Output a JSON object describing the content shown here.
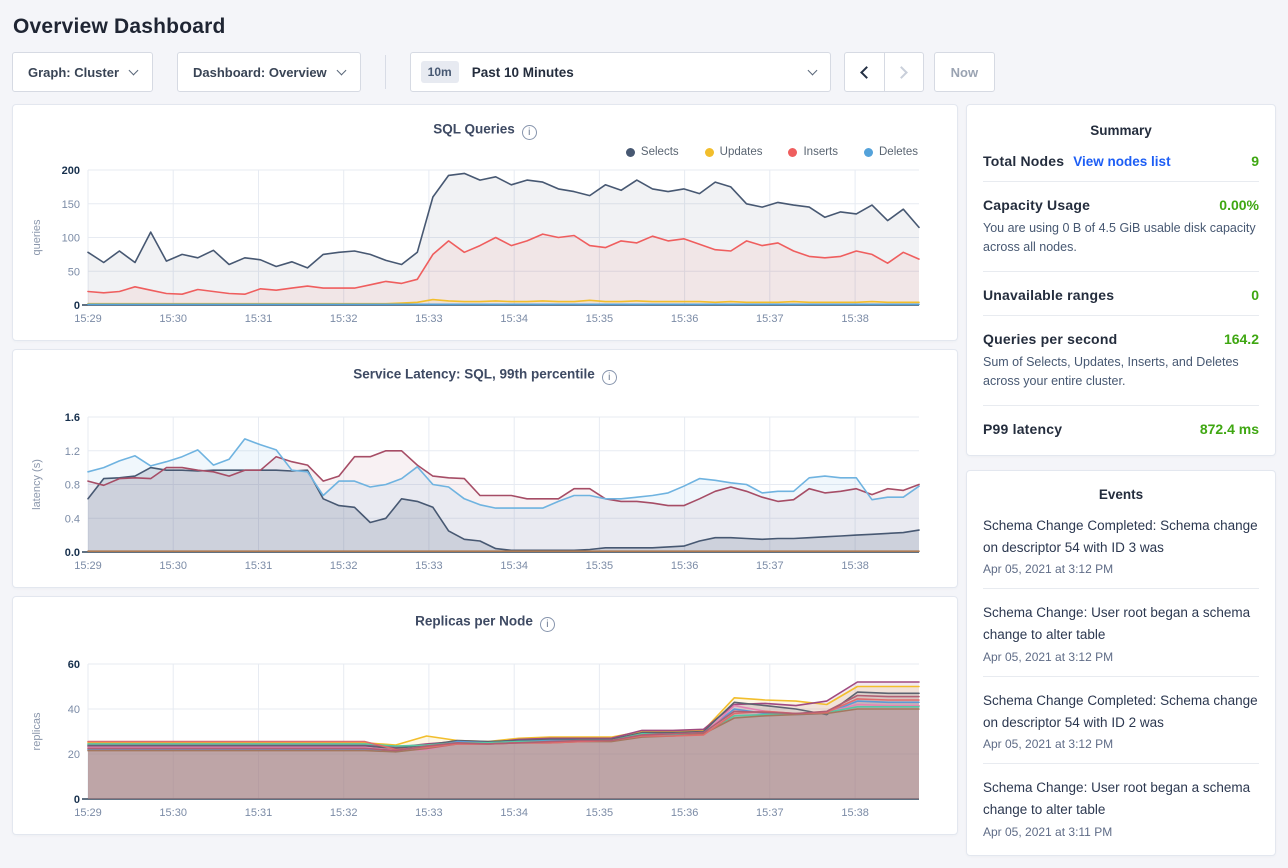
{
  "page": {
    "title": "Overview Dashboard"
  },
  "toolbar": {
    "graph_dropdown": "Graph: Cluster",
    "dashboard_dropdown": "Dashboard: Overview",
    "time_badge": "10m",
    "time_range": "Past 10 Minutes",
    "now_button": "Now"
  },
  "summary": {
    "title": "Summary",
    "total_nodes": {
      "label": "Total Nodes",
      "link": "View nodes list",
      "value": "9"
    },
    "capacity": {
      "label": "Capacity Usage",
      "value": "0.00%",
      "desc": "You are using 0 B of 4.5 GiB usable disk capacity across all nodes."
    },
    "unavailable": {
      "label": "Unavailable ranges",
      "value": "0"
    },
    "qps": {
      "label": "Queries per second",
      "value": "164.2",
      "desc": "Sum of Selects, Updates, Inserts, and Deletes across your entire cluster."
    },
    "p99": {
      "label": "P99 latency",
      "value": "872.4 ms"
    }
  },
  "events": {
    "title": "Events",
    "items": [
      {
        "text": "Schema Change Completed: Schema change on descriptor 54 with ID 3 was",
        "timestamp": "Apr 05, 2021 at 3:12 PM"
      },
      {
        "text": "Schema Change: User root began a schema change to alter table",
        "timestamp": "Apr 05, 2021 at 3:12 PM"
      },
      {
        "text": "Schema Change Completed: Schema change on descriptor 54 with ID 2 was",
        "timestamp": "Apr 05, 2021 at 3:12 PM"
      },
      {
        "text": "Schema Change: User root began a schema change to alter table",
        "timestamp": "Apr 05, 2021 at 3:11 PM"
      }
    ]
  },
  "chart_data": [
    {
      "type": "area",
      "title": "SQL Queries",
      "ylabel": "queries",
      "ylim": [
        0,
        200
      ],
      "yticks": [
        [
          0,
          "0"
        ],
        [
          50,
          "50"
        ],
        [
          100,
          "100"
        ],
        [
          150,
          "150"
        ],
        [
          200,
          "200"
        ]
      ],
      "x_tick_labels": [
        "15:29",
        "15:30",
        "15:31",
        "15:32",
        "15:33",
        "15:34",
        "15:35",
        "15:36",
        "15:37",
        "15:38"
      ],
      "x_total_seconds": 585,
      "grid": true,
      "legend_position": "top-right",
      "series": [
        {
          "name": "Selects",
          "color": "#475872",
          "fill_opacity": 0.08,
          "values": [
            78,
            63,
            80,
            63,
            108,
            65,
            75,
            70,
            81,
            60,
            70,
            67,
            57,
            64,
            55,
            75,
            78,
            80,
            75,
            66,
            60,
            78,
            160,
            192,
            195,
            185,
            190,
            178,
            185,
            182,
            172,
            168,
            162,
            178,
            170,
            185,
            172,
            168,
            172,
            165,
            182,
            175,
            150,
            145,
            152,
            148,
            145,
            130,
            138,
            135,
            148,
            125,
            142,
            115
          ]
        },
        {
          "name": "Updates",
          "color": "#f2be2c",
          "fill_opacity": 0.1,
          "values": [
            2,
            2,
            2,
            2,
            2,
            2,
            2,
            2,
            2,
            2,
            2,
            2,
            2,
            2,
            2,
            2,
            2,
            2,
            2,
            2,
            3,
            4,
            8,
            6,
            5,
            5,
            6,
            5,
            5,
            6,
            5,
            5,
            7,
            5,
            5,
            6,
            5,
            5,
            5,
            5,
            4,
            5,
            4,
            4,
            4,
            5,
            4,
            4,
            4,
            4,
            5,
            4,
            4,
            4
          ]
        },
        {
          "name": "Inserts",
          "color": "#ef5e5e",
          "fill_opacity": 0.08,
          "values": [
            20,
            18,
            20,
            27,
            22,
            17,
            16,
            23,
            20,
            17,
            16,
            24,
            22,
            25,
            28,
            25,
            25,
            25,
            30,
            35,
            32,
            38,
            75,
            95,
            78,
            88,
            100,
            88,
            95,
            105,
            100,
            103,
            88,
            85,
            95,
            92,
            102,
            95,
            98,
            90,
            82,
            80,
            95,
            88,
            92,
            80,
            72,
            70,
            72,
            80,
            75,
            62,
            78,
            68
          ]
        },
        {
          "name": "Deletes",
          "color": "#54a2da",
          "fill_opacity": 0.1,
          "values": [
            1,
            1,
            1,
            1,
            1,
            1,
            1,
            1,
            1,
            1,
            1,
            1,
            1,
            1,
            1,
            1,
            1,
            1,
            1,
            1,
            1,
            1,
            1,
            1,
            1,
            1,
            1,
            1,
            1,
            1,
            1,
            1,
            1,
            1,
            1,
            1,
            1,
            1,
            1,
            1,
            1,
            1,
            1,
            1,
            1,
            1,
            1,
            1,
            1,
            1,
            1,
            1,
            1,
            1
          ]
        }
      ]
    },
    {
      "type": "area",
      "title": "Service Latency: SQL, 99th percentile",
      "ylabel": "latency (s)",
      "ylim": [
        0,
        1.6
      ],
      "yticks": [
        [
          0,
          "0.0"
        ],
        [
          0.4,
          "0.4"
        ],
        [
          0.8,
          "0.8"
        ],
        [
          1.2,
          "1.2"
        ],
        [
          1.6,
          "1.6"
        ]
      ],
      "x_tick_labels": [
        "15:29",
        "15:30",
        "15:31",
        "15:32",
        "15:33",
        "15:34",
        "15:35",
        "15:36",
        "15:37",
        "15:38"
      ],
      "x_total_seconds": 585,
      "grid": true,
      "series": [
        {
          "color": "#475872",
          "fill_opacity": 0.18,
          "values": [
            0.63,
            0.87,
            0.88,
            0.9,
            1.0,
            0.97,
            0.97,
            0.96,
            0.97,
            0.97,
            0.97,
            0.97,
            0.97,
            0.96,
            0.97,
            0.63,
            0.55,
            0.53,
            0.35,
            0.4,
            0.63,
            0.6,
            0.53,
            0.25,
            0.15,
            0.13,
            0.04,
            0.02,
            0.02,
            0.02,
            0.02,
            0.02,
            0.03,
            0.05,
            0.05,
            0.05,
            0.05,
            0.06,
            0.07,
            0.13,
            0.17,
            0.17,
            0.16,
            0.15,
            0.16,
            0.16,
            0.17,
            0.18,
            0.19,
            0.2,
            0.21,
            0.22,
            0.23,
            0.26
          ]
        },
        {
          "color": "#a64d66",
          "fill_opacity": 0.08,
          "values": [
            0.84,
            0.79,
            0.87,
            0.88,
            0.87,
            1.0,
            1.0,
            0.97,
            0.95,
            0.9,
            0.97,
            0.97,
            1.13,
            1.07,
            1.03,
            0.84,
            0.9,
            1.13,
            1.13,
            1.2,
            1.2,
            1.03,
            0.9,
            0.88,
            0.87,
            0.67,
            0.67,
            0.67,
            0.63,
            0.63,
            0.63,
            0.75,
            0.75,
            0.63,
            0.6,
            0.6,
            0.58,
            0.55,
            0.55,
            0.63,
            0.72,
            0.77,
            0.72,
            0.65,
            0.6,
            0.62,
            0.75,
            0.7,
            0.72,
            0.75,
            0.68,
            0.75,
            0.73,
            0.8
          ]
        },
        {
          "color": "#6fb3e0",
          "fill_opacity": 0.1,
          "values": [
            0.95,
            1.0,
            1.08,
            1.14,
            1.02,
            1.07,
            1.13,
            1.21,
            1.03,
            1.1,
            1.34,
            1.27,
            1.21,
            0.97,
            0.95,
            0.67,
            0.84,
            0.84,
            0.77,
            0.8,
            0.87,
            1.01,
            0.8,
            0.77,
            0.63,
            0.56,
            0.52,
            0.52,
            0.52,
            0.52,
            0.6,
            0.67,
            0.67,
            0.63,
            0.63,
            0.65,
            0.67,
            0.7,
            0.78,
            0.87,
            0.85,
            0.82,
            0.8,
            0.7,
            0.72,
            0.72,
            0.88,
            0.9,
            0.88,
            0.88,
            0.62,
            0.65,
            0.65,
            0.78
          ]
        },
        {
          "color": "#ad7a52",
          "fill_opacity": 0,
          "values": [
            0.01,
            0.01,
            0.01,
            0.01,
            0.01,
            0.01,
            0.01,
            0.01,
            0.01,
            0.01,
            0.01,
            0.01,
            0.01,
            0.01,
            0.01,
            0.01,
            0.01,
            0.01,
            0.01,
            0.01,
            0.01,
            0.01,
            0.01,
            0.01,
            0.01,
            0.01,
            0.01,
            0.01,
            0.01,
            0.01,
            0.01,
            0.01,
            0.01,
            0.01,
            0.01,
            0.01,
            0.01,
            0.01,
            0.01,
            0.01,
            0.01,
            0.01,
            0.01,
            0.01,
            0.01,
            0.01,
            0.01,
            0.01,
            0.01,
            0.01,
            0.01,
            0.01,
            0.01,
            0.01
          ]
        }
      ]
    },
    {
      "type": "area",
      "title": "Replicas per Node",
      "ylabel": "replicas",
      "ylim": [
        0,
        60
      ],
      "yticks": [
        [
          0,
          "0"
        ],
        [
          20,
          "20"
        ],
        [
          40,
          "40"
        ],
        [
          60,
          "60"
        ]
      ],
      "x_tick_labels": [
        "15:29",
        "15:30",
        "15:31",
        "15:32",
        "15:33",
        "15:34",
        "15:35",
        "15:36",
        "15:37",
        "15:38"
      ],
      "x_total_seconds": 585,
      "grid": true,
      "series": [
        {
          "color": "#f2be2c",
          "fill_opacity": 0.12,
          "values": [
            25,
            25,
            25,
            25,
            25,
            25,
            25,
            25,
            25,
            25,
            24,
            28,
            26,
            25.5,
            27,
            27.5,
            27.5,
            27.5,
            30,
            30,
            30.5,
            45,
            44,
            43.5,
            42,
            50,
            50,
            50
          ]
        },
        {
          "color": "#a04a80",
          "fill_opacity": 0.12,
          "values": [
            24,
            24,
            24,
            24,
            24,
            24,
            24,
            24,
            24,
            24,
            23,
            24.5,
            25.5,
            25,
            26.5,
            27,
            27,
            27,
            30.5,
            30.5,
            31,
            42,
            42.5,
            41.5,
            43.5,
            52,
            52,
            52
          ]
        },
        {
          "color": "#5d6370",
          "fill_opacity": 0.12,
          "values": [
            23.5,
            23.5,
            23.5,
            23.5,
            23.5,
            23.5,
            23.5,
            23.5,
            23.5,
            23.5,
            22.5,
            24,
            26,
            25.5,
            26,
            26.5,
            26.5,
            26.5,
            29.5,
            29.5,
            30,
            43,
            41.5,
            40,
            37.5,
            47.5,
            47,
            47
          ]
        },
        {
          "color": "#5b9bd5",
          "fill_opacity": 0.12,
          "values": [
            22,
            22,
            22,
            22,
            22,
            22,
            22,
            22,
            22,
            22,
            21,
            23,
            25.5,
            25,
            25.5,
            26,
            26,
            26,
            28.5,
            29,
            29.5,
            40,
            38,
            37.5,
            38,
            43.5,
            43,
            43
          ]
        },
        {
          "color": "#e583b4",
          "fill_opacity": 0.12,
          "values": [
            23,
            23,
            23,
            23,
            23,
            23,
            23,
            23,
            23,
            23,
            21.5,
            22,
            24.5,
            24.5,
            25,
            25.5,
            25.5,
            26,
            28,
            28.5,
            29,
            41.5,
            39,
            38,
            38.5,
            42,
            41.5,
            41.5
          ]
        },
        {
          "color": "#57c7a2",
          "fill_opacity": 0.12,
          "values": [
            24.5,
            24.5,
            24.5,
            24.5,
            24.5,
            24.5,
            24.5,
            24.5,
            24.5,
            24.5,
            23.5,
            24,
            25,
            25,
            25.5,
            25.5,
            26,
            26,
            29,
            28.5,
            29,
            37,
            37.5,
            38,
            38.5,
            41,
            41,
            41
          ]
        },
        {
          "color": "#a3785f",
          "fill_opacity": 0.12,
          "values": [
            21.5,
            21.5,
            21.5,
            21.5,
            21.5,
            21.5,
            21.5,
            21.5,
            21.5,
            21.5,
            21,
            22.5,
            24.5,
            24.5,
            25,
            25,
            25.5,
            25.5,
            27.5,
            28,
            29,
            36,
            37,
            37.5,
            38,
            40,
            40,
            40
          ]
        },
        {
          "color": "#e06c6c",
          "fill_opacity": 0.12,
          "values": [
            25.5,
            25.5,
            25.5,
            25.5,
            25.5,
            25.5,
            25.5,
            25.5,
            25.5,
            25.5,
            22,
            23,
            24.5,
            24.5,
            25,
            25,
            25.5,
            26,
            28,
            28,
            28.5,
            38,
            39,
            38,
            38.5,
            44.5,
            44,
            44
          ]
        },
        {
          "color": "#b05f73",
          "fill_opacity": 0.12,
          "values": [
            22.5,
            22.5,
            22.5,
            22.5,
            22.5,
            22.5,
            22.5,
            22.5,
            22.5,
            22.5,
            21.5,
            23.5,
            25,
            24.5,
            25,
            25.5,
            26,
            26,
            28.5,
            29,
            29.5,
            39,
            38.5,
            38,
            39,
            46,
            45.5,
            45.5
          ]
        }
      ]
    }
  ]
}
